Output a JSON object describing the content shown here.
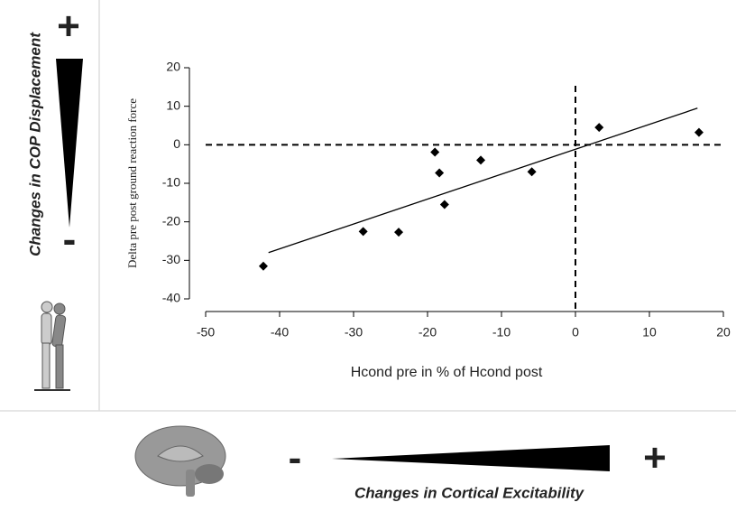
{
  "chart_data": {
    "type": "scatter",
    "xlabel": "Hcond pre in % of Hcond post",
    "ylabel": "Delta pre post ground reaction force",
    "x": [
      -42.2,
      -28.7,
      -23.9,
      -19,
      -18.4,
      -17.7,
      -12.8,
      -5.9,
      3.2,
      16.7
    ],
    "values": [
      -31.5,
      -22.5,
      -22.7,
      -1.9,
      -7.3,
      -15.5,
      -4,
      -7,
      4.5,
      3.2
    ],
    "color": "#000000",
    "fit_line": {
      "x": [
        -41.5,
        16.5
      ],
      "values": [
        -28,
        9.5
      ]
    },
    "reference_lines": {
      "x": 0,
      "y": 0
    },
    "xlim": [
      -50,
      20
    ],
    "xticks": [
      -50,
      -40,
      -30,
      -20,
      -10,
      0,
      10,
      20
    ],
    "ylim": [
      -40,
      20
    ],
    "yticks": [
      -40,
      -30,
      -20,
      -10,
      0,
      10,
      20
    ]
  },
  "side_panel": {
    "plus": "+",
    "label": "Changes in COP Displacement",
    "minus": "-"
  },
  "bottom_panel": {
    "minus": "-",
    "label": "Changes in Cortical Excitability",
    "plus": "+"
  }
}
